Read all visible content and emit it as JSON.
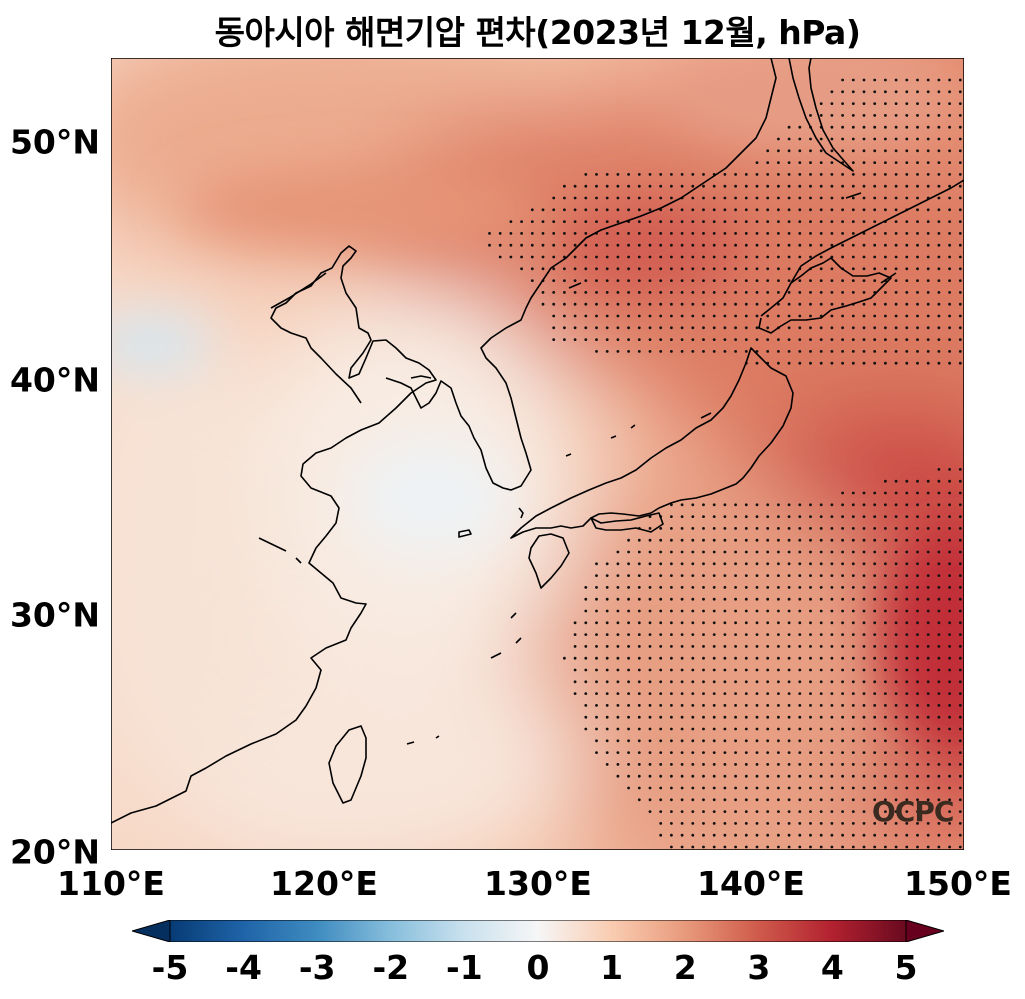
{
  "title": "동아시아 해면기압 편차(2023년 12월, hPa)",
  "lat_ticks": [
    "50°N",
    "40°N",
    "30°N",
    "20°N"
  ],
  "lon_ticks": [
    "110°E",
    "120°E",
    "130°E",
    "140°E",
    "150°E"
  ],
  "colorbar": {
    "ticks": [
      "-5",
      "-4",
      "-3",
      "-2",
      "-1",
      "0",
      "1",
      "2",
      "3",
      "4",
      "5"
    ],
    "range": [
      -5,
      5
    ],
    "colormap": "RdBu_r",
    "extend": "both"
  },
  "logo": "OCPC",
  "colors": {
    "positive": "#b2182b",
    "negative": "#2166ac",
    "neutral": "#f7f7f7"
  }
}
